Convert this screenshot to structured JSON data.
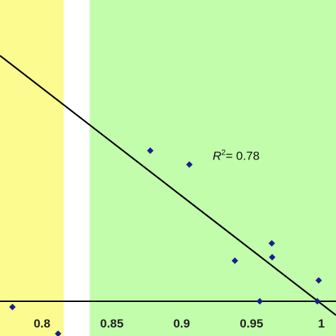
{
  "chart_data": {
    "type": "scatter",
    "title": "",
    "xlabel": "",
    "ylabel": "",
    "xlim": [
      0.7699,
      1.0105
    ],
    "ylim": [
      -0.3,
      2.6
    ],
    "x_ticks": [
      {
        "value": 0.8,
        "label": "0.8"
      },
      {
        "value": 0.85,
        "label": "0.85"
      },
      {
        "value": 0.9,
        "label": "0.9"
      },
      {
        "value": 0.95,
        "label": "0.95"
      },
      {
        "value": 1.0,
        "label": "1"
      }
    ],
    "background_bands": [
      {
        "name": "yellow-band",
        "x_from": 0.7699,
        "x_to": 0.8155,
        "color": "#fbfb8f"
      },
      {
        "name": "green-band",
        "x_from": 0.8341,
        "x_to": 1.0105,
        "color": "#c1fdab"
      }
    ],
    "baseline_y": 0.0,
    "points": [
      {
        "x": 0.7788,
        "y": -0.05
      },
      {
        "x": 0.8115,
        "y": -0.28
      },
      {
        "x": 0.8775,
        "y": 1.3
      },
      {
        "x": 0.9055,
        "y": 1.18
      },
      {
        "x": 0.9381,
        "y": 0.35
      },
      {
        "x": 0.9559,
        "y": 0.0
      },
      {
        "x": 0.9645,
        "y": 0.5
      },
      {
        "x": 0.9648,
        "y": 0.38
      },
      {
        "x": 0.9981,
        "y": 0.18
      },
      {
        "x": 0.9971,
        "y": 0.0
      }
    ],
    "marker_color": "#1a1f8c",
    "trendline": {
      "x1": 0.7699,
      "y1": 2.12,
      "x2": 1.0105,
      "y2": -0.12,
      "color": "#000000"
    },
    "r2_label": {
      "prefix": "R",
      "superscript": "2",
      "text": "= 0.78",
      "x": 0.9222,
      "y": 1.22
    }
  }
}
